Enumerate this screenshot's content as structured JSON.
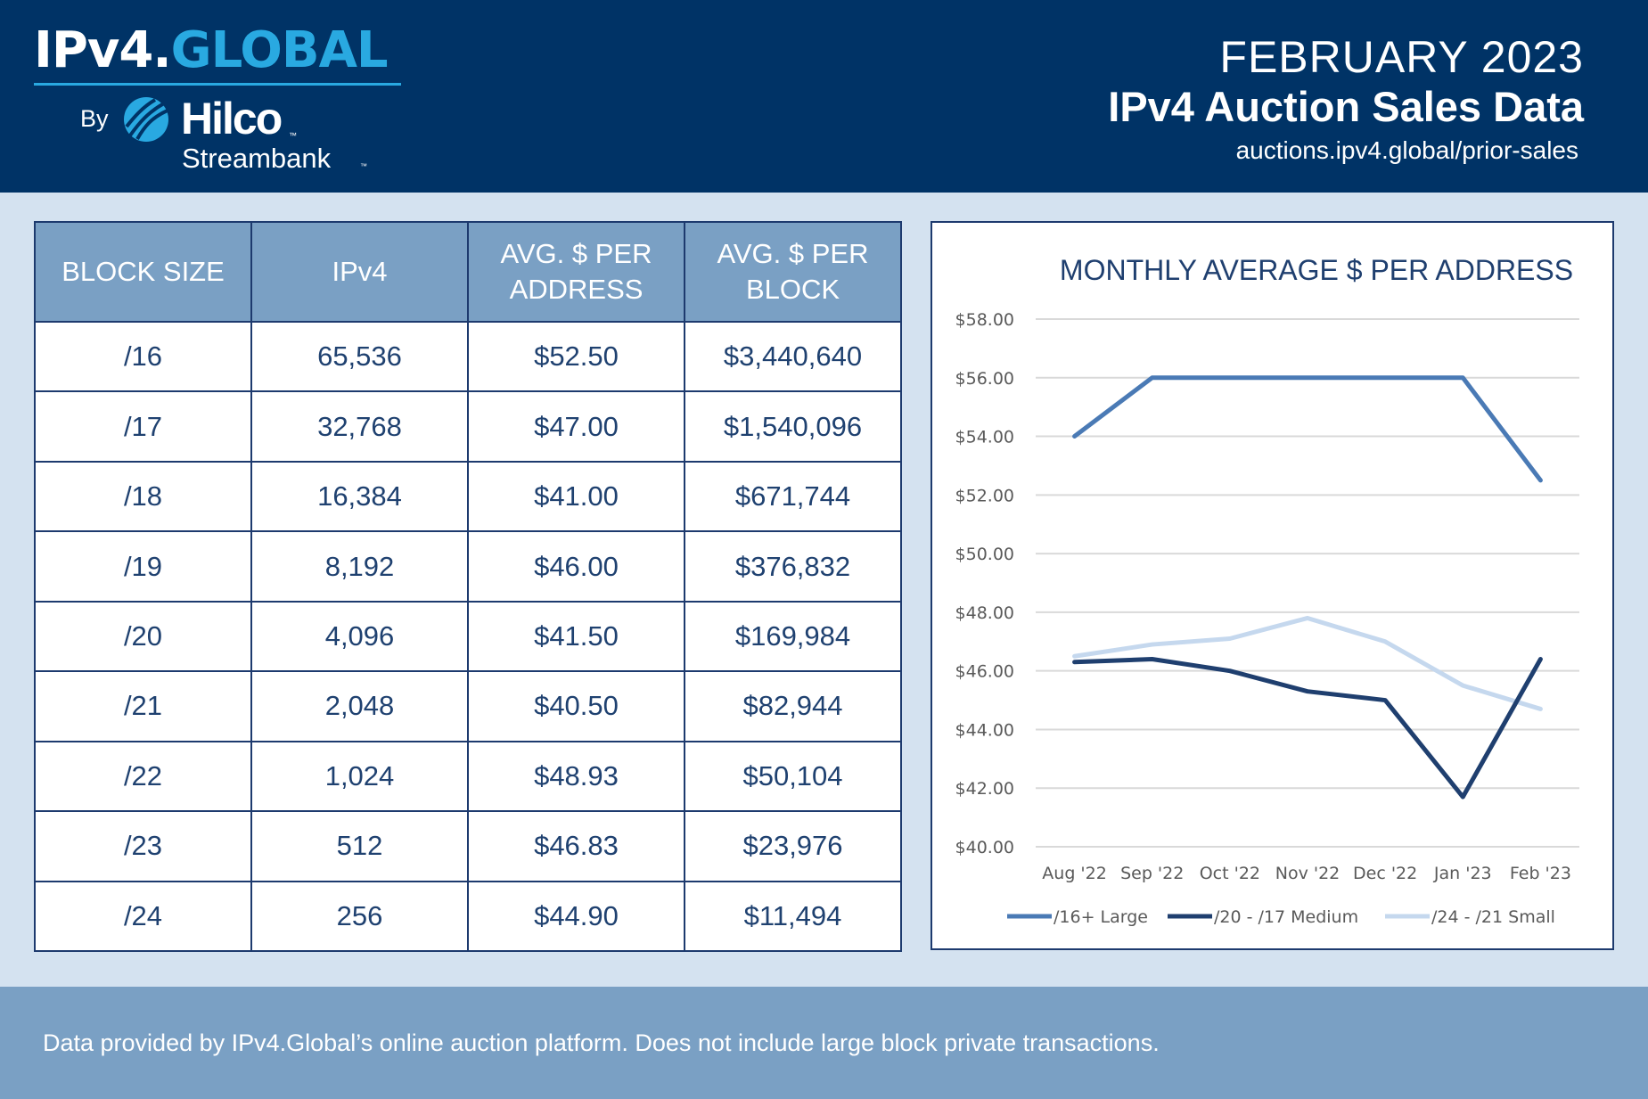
{
  "brand": {
    "logo_main": "IPv4.",
    "logo_accent": "GLOBAL",
    "by": "By",
    "company": "Hilco",
    "company_sub": "Streambank",
    "tm": "™"
  },
  "header": {
    "date": "FEBRUARY 2023",
    "title": "IPv4 Auction Sales Data",
    "url": "auctions.ipv4.global/prior-sales"
  },
  "table": {
    "headers": [
      "BLOCK SIZE",
      "IPv4",
      "AVG. $ PER ADDRESS",
      "AVG. $ PER BLOCK"
    ],
    "rows": [
      [
        "/16",
        "65,536",
        "$52.50",
        "$3,440,640"
      ],
      [
        "/17",
        "32,768",
        "$47.00",
        "$1,540,096"
      ],
      [
        "/18",
        "16,384",
        "$41.00",
        "$671,744"
      ],
      [
        "/19",
        "8,192",
        "$46.00",
        "$376,832"
      ],
      [
        "/20",
        "4,096",
        "$41.50",
        "$169,984"
      ],
      [
        "/21",
        "2,048",
        "$40.50",
        "$82,944"
      ],
      [
        "/22",
        "1,024",
        "$48.93",
        "$50,104"
      ],
      [
        "/23",
        "512",
        "$46.83",
        "$23,976"
      ],
      [
        "/24",
        "256",
        "$44.90",
        "$11,494"
      ]
    ]
  },
  "chart_data": {
    "type": "line",
    "title": "MONTHLY AVERAGE $ PER ADDRESS",
    "categories": [
      "Aug '22",
      "Sep '22",
      "Oct '22",
      "Nov '22",
      "Dec '22",
      "Jan '23",
      "Feb '23"
    ],
    "ylim": [
      40,
      58
    ],
    "yticks": [
      40,
      42,
      44,
      46,
      48,
      50,
      52,
      54,
      56,
      58
    ],
    "ytick_labels": [
      "$40.00",
      "$42.00",
      "$44.00",
      "$46.00",
      "$48.00",
      "$50.00",
      "$52.00",
      "$54.00",
      "$56.00",
      "$58.00"
    ],
    "grid": true,
    "legend_position": "bottom",
    "series": [
      {
        "name": "/16+ Large",
        "color": "#4a7ab5",
        "values": [
          54.0,
          56.0,
          56.0,
          56.0,
          56.0,
          56.0,
          52.5
        ]
      },
      {
        "name": "/20 - /17 Medium",
        "color": "#1f3f6f",
        "values": [
          46.3,
          46.4,
          46.0,
          45.3,
          45.0,
          41.7,
          46.4
        ]
      },
      {
        "name": "/24 - /21 Small",
        "color": "#c5d8ee",
        "values": [
          46.5,
          46.9,
          47.1,
          47.8,
          47.0,
          45.5,
          44.7
        ]
      }
    ]
  },
  "footer": {
    "note": "Data provided by IPv4.Global’s online auction platform. Does not include large block private transactions."
  }
}
